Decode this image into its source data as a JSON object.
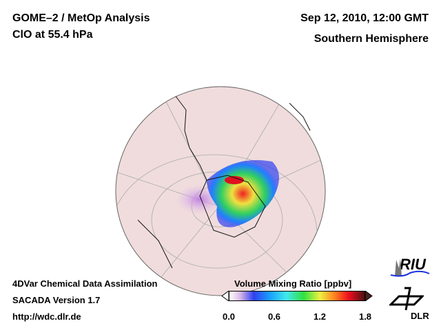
{
  "header": {
    "title_left_1": "GOME–2 / MetOp Analysis",
    "title_left_2": "ClO at 55.4 hPa",
    "title_right_1": "Sep 12, 2010, 12:00 GMT",
    "title_right_2": "Southern Hemisphere"
  },
  "footer": {
    "line1": "4DVar Chemical Data Assimilation",
    "line2": "SACADA Version 1.7",
    "line3": "http://wdc.dlr.de"
  },
  "colorbar": {
    "label": "Volume Mixing Ratio [ppbv]",
    "ticks": [
      "0.0",
      "0.6",
      "1.2",
      "1.8"
    ],
    "min": 0.0,
    "max": 1.8
  },
  "logos": {
    "riu": "RIU",
    "dlr": "DLR"
  }
}
